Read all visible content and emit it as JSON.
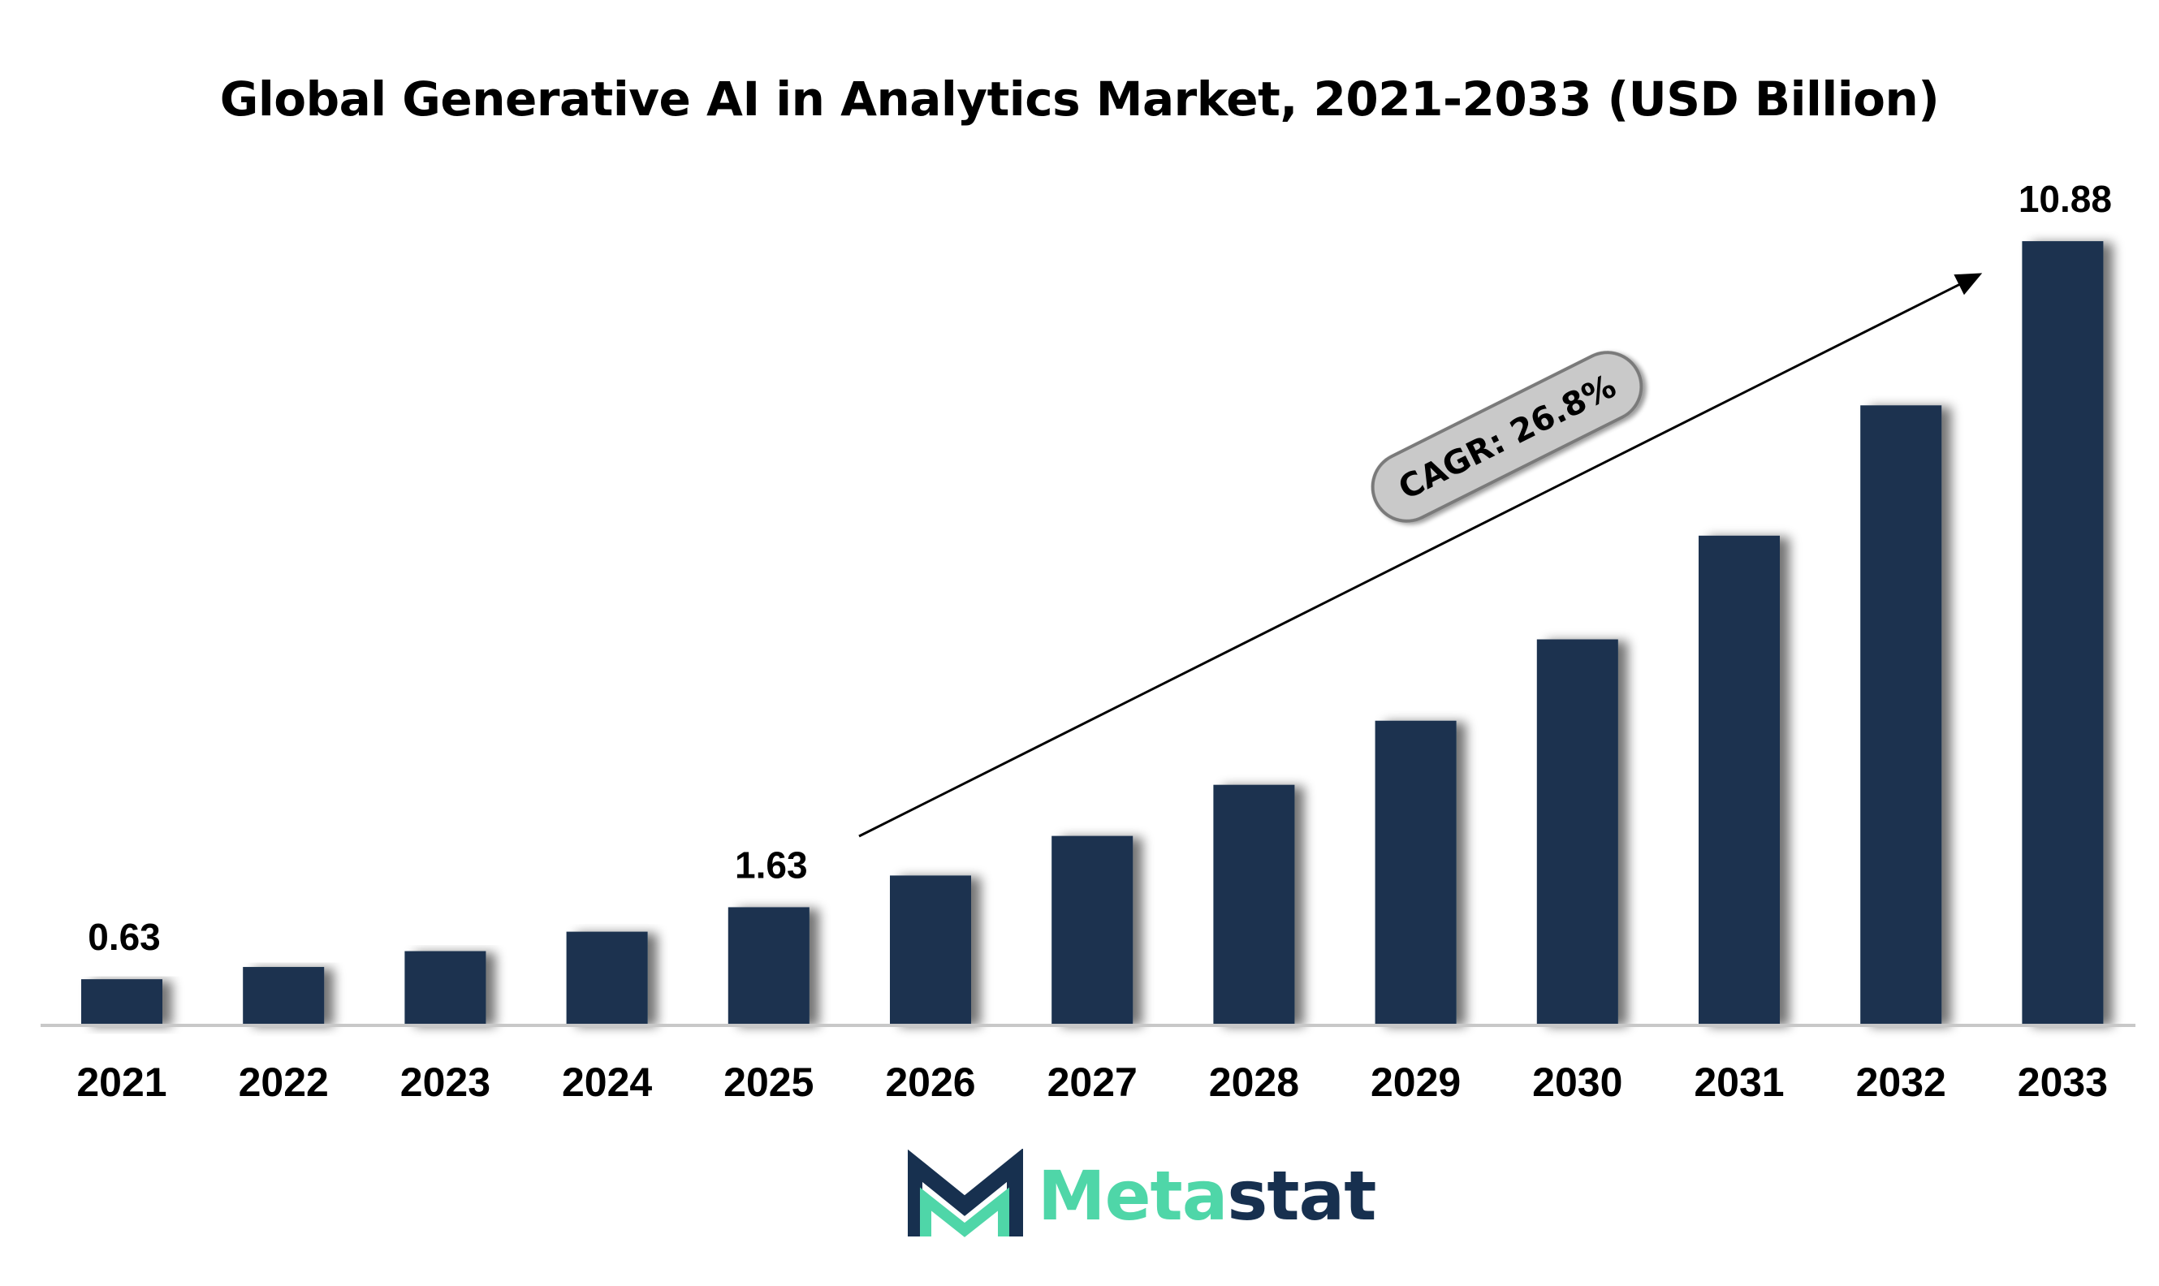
{
  "chart_data": {
    "type": "bar",
    "title": "Global Generative AI in Analytics Market, 2021-2033 (USD Billion)",
    "xlabel": "",
    "ylabel": "",
    "categories": [
      "2021",
      "2022",
      "2023",
      "2024",
      "2025",
      "2026",
      "2027",
      "2028",
      "2029",
      "2030",
      "2031",
      "2032",
      "2033"
    ],
    "values": [
      0.63,
      0.8,
      1.02,
      1.29,
      1.63,
      2.07,
      2.62,
      3.33,
      4.22,
      5.35,
      6.79,
      8.6,
      10.88
    ],
    "data_labels": [
      {
        "index": 0,
        "text": "0.63"
      },
      {
        "index": 4,
        "text": "1.63"
      },
      {
        "index": 12,
        "text": "10.88"
      }
    ],
    "annotation": {
      "text": "CAGR: 26.8%"
    },
    "ylim": [
      0,
      12.2
    ],
    "grid": false,
    "legend": "none",
    "colors": {
      "bar": "#1a3350",
      "axis": "#c8c8c8",
      "pill_fill": "#c9c9c9",
      "pill_stroke": "#7a7a7a"
    }
  },
  "logo": {
    "name": "Metastat",
    "part1": "Meta",
    "part2": "stat",
    "icon": "metastat-m-logo-icon",
    "colors": {
      "dark": "#17304f",
      "green": "#4fd6a8"
    }
  }
}
